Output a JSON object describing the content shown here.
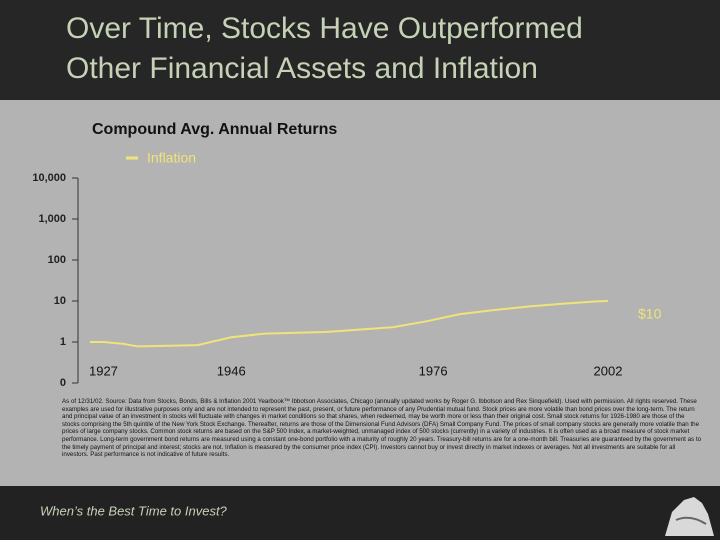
{
  "slide": {
    "title": [
      "Over Time, Stocks Have Outperformed",
      "Other Financial Assets and Inflation"
    ],
    "footer": "When’s the Best Time to Invest?",
    "footnote": "As of 12/31/02. Source: Data from Stocks, Bonds, Bills & Inflation 2001 Yearbook™ Ibbotson Associates, Chicago (annually updated works by Roger G. Ibbotson and Rex Sinquefield). Used with permission. All rights reserved. These examples are used for illustrative purposes only and are not intended to represent the past, present, or future performance of any Prudential mutual fund. Stock prices are more volatile than bond prices over the long-term. The return and principal value of an investment in stocks will fluctuate with changes in market conditions so that shares, when redeemed, may be worth more or less than their original cost. Small stock returns for 1926-1980 are those of the stocks comprising the 5th quintile of the New York Stock Exchange. Thereafter, returns are those of the Dimensional Fund Advisors (DFA) Small Company Fund. The prices of small company stocks are generally more volatile than the prices of large company stocks. Common stock returns are based on the S&P 500 Index, a market-weighted, unmanaged index of 500 stocks (currently) in a variety of industries. It is often used as a broad measure of stock market performance. Long-term government bond returns are measured using a constant one-bond portfolio with a maturity of roughly 20 years. Treasury-bill returns are for a one-month bill. Treasuries are guaranteed by the government as to the timely payment of principal and interest; stocks are not. Inflation is measured by the consumer price index (CPI). Investors cannot buy or invest directly in market indexes or averages. Not all investments are suitable for all investors. Past performance is not indicative of future results."
  },
  "chart_data": {
    "type": "line",
    "title": "Compound Avg. Annual Returns",
    "x": [
      1925,
      1927,
      1930,
      1932,
      1935,
      1941,
      1946,
      1951,
      1960,
      1970,
      1975,
      1980,
      1985,
      1990,
      1995,
      2000,
      2002
    ],
    "series": [
      {
        "name": "Inflation",
        "color": "#efe37a",
        "values": [
          1,
          1,
          0.9,
          0.78,
          0.8,
          0.84,
          1.3,
          1.6,
          1.75,
          2.3,
          3.2,
          4.8,
          6.0,
          7.3,
          8.5,
          9.7,
          10
        ],
        "value_labels": [
          null,
          null,
          null,
          null,
          null,
          null,
          null,
          null,
          null,
          null,
          null,
          null,
          null,
          null,
          null,
          null,
          "$10"
        ]
      }
    ],
    "xlim": [
      1925,
      2002
    ],
    "xticks": [
      1927,
      1946,
      1976,
      2002
    ],
    "ylim": [
      0.1,
      10000
    ],
    "yticks": [
      {
        "value": 0.1,
        "label": "0"
      },
      1,
      10,
      100,
      {
        "value": 1000,
        "label": "1,000"
      },
      {
        "value": 10000,
        "label": "10,000"
      }
    ],
    "log_scale": true
  }
}
